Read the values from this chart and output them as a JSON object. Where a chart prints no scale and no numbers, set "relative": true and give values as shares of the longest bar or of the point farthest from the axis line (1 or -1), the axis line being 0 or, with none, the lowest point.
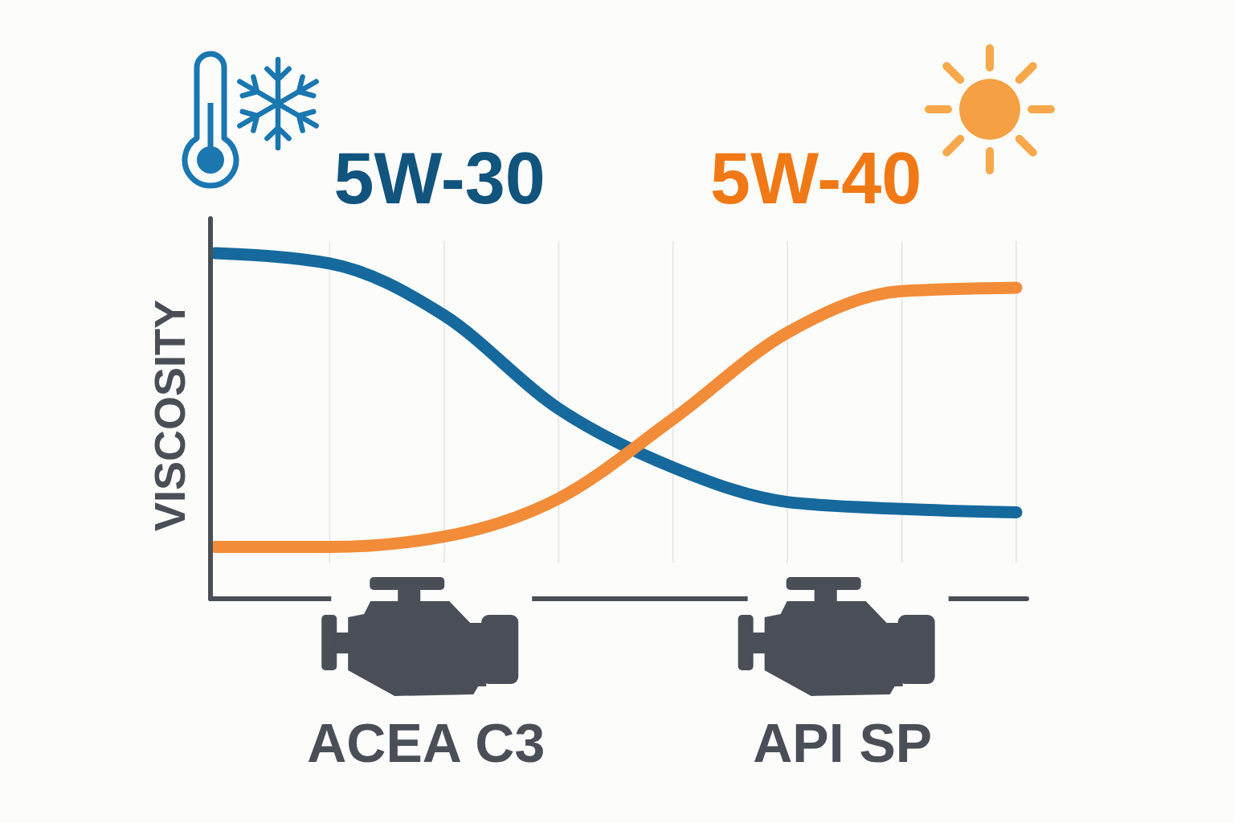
{
  "chart_data": {
    "type": "line",
    "relative": true,
    "ylabel": "VISCOSITY",
    "line_style": "solid",
    "grid": "x",
    "categories": [
      null,
      null,
      null,
      null,
      null,
      null,
      null,
      null
    ],
    "series": [
      {
        "name": "5W-30",
        "color": "#15699c",
        "values": [
          1.0,
          0.97,
          0.82,
          0.55,
          0.38,
          0.28,
          0.26,
          0.25
        ]
      },
      {
        "name": "5W-40",
        "color": "#f28c38",
        "values": [
          0.15,
          0.15,
          0.18,
          0.29,
          0.52,
          0.77,
          0.89,
          0.9
        ]
      }
    ],
    "annotations": [
      "ACEA C3",
      "API SP"
    ]
  }
}
